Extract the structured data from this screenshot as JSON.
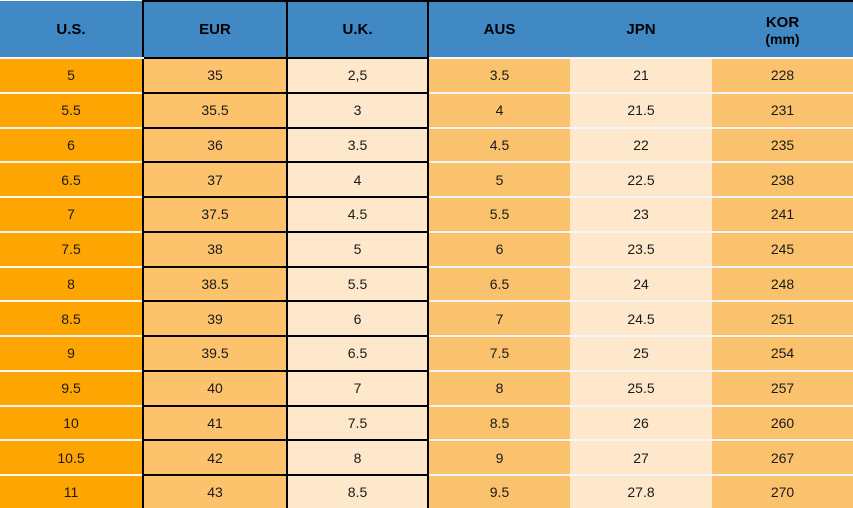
{
  "header": {
    "us": "U.S.",
    "eur": "EUR",
    "uk": "U.K.",
    "aus": "AUS",
    "jpn": "JPN",
    "kor": "KOR",
    "kor_sub": "(mm)"
  },
  "chart_data": {
    "type": "table",
    "columns": [
      "U.S.",
      "EUR",
      "U.K.",
      "AUS",
      "JPN",
      "KOR (mm)"
    ],
    "rows": [
      [
        "5",
        "35",
        "2,5",
        "3.5",
        "21",
        "228"
      ],
      [
        "5.5",
        "35.5",
        "3",
        "4",
        "21.5",
        "231"
      ],
      [
        "6",
        "36",
        "3.5",
        "4.5",
        "22",
        "235"
      ],
      [
        "6.5",
        "37",
        "4",
        "5",
        "22.5",
        "238"
      ],
      [
        "7",
        "37.5",
        "4.5",
        "5.5",
        "23",
        "241"
      ],
      [
        "7.5",
        "38",
        "5",
        "6",
        "23.5",
        "245"
      ],
      [
        "8",
        "38.5",
        "5.5",
        "6.5",
        "24",
        "248"
      ],
      [
        "8.5",
        "39",
        "6",
        "7",
        "24.5",
        "251"
      ],
      [
        "9",
        "39.5",
        "6.5",
        "7.5",
        "25",
        "254"
      ],
      [
        "9.5",
        "40",
        "7",
        "8",
        "25.5",
        "257"
      ],
      [
        "10",
        "41",
        "7.5",
        "8.5",
        "26",
        "260"
      ],
      [
        "10.5",
        "42",
        "8",
        "9",
        "27",
        "267"
      ],
      [
        "11",
        "43",
        "8.5",
        "9.5",
        "27.8",
        "270"
      ]
    ],
    "layout": {
      "grid": "left half (U.S./EUR/U.K.) black cell borders, right half (AUS/JPN/KOR) white row separators only",
      "legend_position": "none"
    }
  },
  "colors": {
    "header_bg": "#4189C4",
    "header_text": "#000000",
    "us_column_bg": "#FFA502",
    "eur_column_bg": "#FDC36C",
    "aus_kor_column_bg": "#FBC26D",
    "cream_column_bg": "#FDE8CC",
    "black_grid": "#000000",
    "row_separator": "#F5F5F5",
    "cell_text": "#1A1A1A"
  }
}
